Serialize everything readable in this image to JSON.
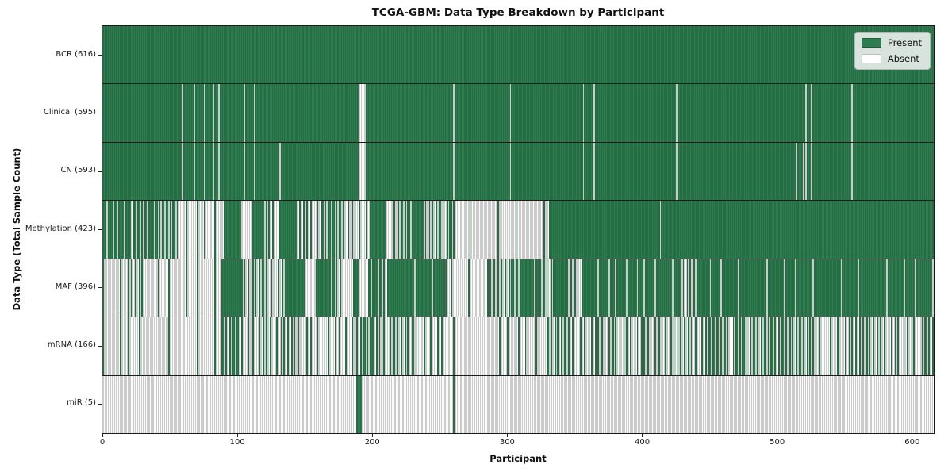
{
  "title": "TCGA-GBM: Data Type Breakdown by Participant",
  "legend": {
    "present_label": "Present",
    "absent_label": "Absent"
  },
  "colors": {
    "present_fill": "#2e7d4f",
    "present_line": "#1e5a39",
    "absent_fill": "#fcfcfc",
    "absent_line": "#9a9a9a",
    "frame": "#1a1a1a"
  },
  "chart_data": {
    "type": "heatmap",
    "title": "TCGA-GBM: Data Type Breakdown by Participant",
    "xlabel": "Participant",
    "ylabel": "Data Type (Total Sample Count)",
    "legend_entries": [
      "Present",
      "Absent"
    ],
    "legend_position": "upper right",
    "n_participants": 616,
    "x_ticks": [
      0,
      100,
      200,
      300,
      400,
      500,
      600
    ],
    "x_range": [
      0,
      616
    ],
    "grid": false,
    "note": "Each row is a presence/absence barcode across 616 participants; segments are [start, end, presence_density] with 1 = present (green), 0 = absent (white), fractional = mixed region (estimated from pixels).",
    "rows": [
      {
        "data_type": "BCR",
        "label": "BCR (616)",
        "present_count": 616,
        "segments": [
          [
            0,
            616,
            1
          ]
        ]
      },
      {
        "data_type": "Clinical",
        "label": "Clinical (595)",
        "present_count": 595,
        "segments": [
          [
            0,
            59,
            1
          ],
          [
            59,
            60,
            0
          ],
          [
            60,
            68,
            1
          ],
          [
            68,
            69,
            0
          ],
          [
            69,
            75,
            1
          ],
          [
            75,
            76,
            0
          ],
          [
            76,
            82,
            1
          ],
          [
            82,
            83,
            0
          ],
          [
            83,
            86,
            1
          ],
          [
            86,
            87,
            0
          ],
          [
            87,
            105,
            1
          ],
          [
            105,
            106,
            0
          ],
          [
            106,
            112,
            1
          ],
          [
            112,
            113,
            0
          ],
          [
            113,
            190,
            1
          ],
          [
            190,
            195,
            0
          ],
          [
            195,
            260,
            1
          ],
          [
            260,
            261,
            0
          ],
          [
            261,
            302,
            1
          ],
          [
            302,
            303,
            0
          ],
          [
            303,
            356,
            1
          ],
          [
            356,
            357,
            0
          ],
          [
            357,
            364,
            1
          ],
          [
            364,
            365,
            0
          ],
          [
            365,
            425,
            1
          ],
          [
            425,
            426,
            0
          ],
          [
            426,
            521,
            1
          ],
          [
            521,
            522,
            0
          ],
          [
            522,
            525,
            1
          ],
          [
            525,
            526,
            0
          ],
          [
            526,
            555,
            1
          ],
          [
            555,
            556,
            0
          ],
          [
            556,
            616,
            1
          ]
        ]
      },
      {
        "data_type": "CN",
        "label": "CN (593)",
        "present_count": 593,
        "segments": [
          [
            0,
            59,
            1
          ],
          [
            59,
            60,
            0
          ],
          [
            60,
            68,
            1
          ],
          [
            68,
            69,
            0
          ],
          [
            69,
            75,
            1
          ],
          [
            75,
            76,
            0
          ],
          [
            76,
            82,
            1
          ],
          [
            82,
            83,
            0
          ],
          [
            83,
            86,
            1
          ],
          [
            86,
            87,
            0
          ],
          [
            87,
            105,
            1
          ],
          [
            105,
            106,
            0
          ],
          [
            106,
            112,
            1
          ],
          [
            112,
            113,
            0
          ],
          [
            113,
            131,
            1
          ],
          [
            131,
            132,
            0
          ],
          [
            132,
            190,
            1
          ],
          [
            190,
            195,
            0
          ],
          [
            195,
            260,
            1
          ],
          [
            260,
            261,
            0
          ],
          [
            261,
            302,
            1
          ],
          [
            302,
            303,
            0
          ],
          [
            303,
            356,
            1
          ],
          [
            356,
            357,
            0
          ],
          [
            357,
            364,
            1
          ],
          [
            364,
            365,
            0
          ],
          [
            365,
            425,
            1
          ],
          [
            425,
            426,
            0
          ],
          [
            426,
            514,
            1
          ],
          [
            514,
            515,
            0
          ],
          [
            515,
            519,
            1
          ],
          [
            519,
            520,
            0
          ],
          [
            520,
            521,
            1
          ],
          [
            521,
            522,
            0
          ],
          [
            522,
            525,
            1
          ],
          [
            525,
            526,
            0
          ],
          [
            526,
            555,
            1
          ],
          [
            555,
            556,
            0
          ],
          [
            556,
            616,
            1
          ]
        ]
      },
      {
        "data_type": "Methylation",
        "label": "Methylation (423)",
        "present_count": 423,
        "segments": [
          [
            0,
            22,
            0.75
          ],
          [
            22,
            57,
            0.65
          ],
          [
            57,
            90,
            0.12
          ],
          [
            90,
            103,
            1
          ],
          [
            103,
            111,
            0
          ],
          [
            111,
            120,
            1
          ],
          [
            120,
            132,
            0.3
          ],
          [
            132,
            143,
            1
          ],
          [
            143,
            163,
            0.35
          ],
          [
            163,
            180,
            0.55
          ],
          [
            180,
            199,
            0.25
          ],
          [
            199,
            210,
            1
          ],
          [
            210,
            216,
            0
          ],
          [
            216,
            230,
            0.5
          ],
          [
            230,
            238,
            1
          ],
          [
            238,
            262,
            0.45
          ],
          [
            262,
            331,
            0.05
          ],
          [
            331,
            413,
            1
          ],
          [
            413,
            414,
            0
          ],
          [
            414,
            616,
            1
          ]
        ]
      },
      {
        "data_type": "MAF",
        "label": "MAF (396)",
        "present_count": 396,
        "segments": [
          [
            0,
            18,
            0.08
          ],
          [
            18,
            30,
            0.35
          ],
          [
            30,
            88,
            0.08
          ],
          [
            88,
            103,
            1
          ],
          [
            103,
            122,
            0.45
          ],
          [
            122,
            135,
            0.25
          ],
          [
            135,
            150,
            1
          ],
          [
            150,
            158,
            0
          ],
          [
            158,
            168,
            1
          ],
          [
            168,
            178,
            0.4
          ],
          [
            178,
            186,
            0
          ],
          [
            186,
            190,
            1
          ],
          [
            190,
            196,
            0
          ],
          [
            196,
            210,
            0.7
          ],
          [
            210,
            255,
            0.92
          ],
          [
            255,
            284,
            0.08
          ],
          [
            284,
            300,
            0.3
          ],
          [
            300,
            309,
            0.6
          ],
          [
            309,
            320,
            1
          ],
          [
            320,
            336,
            0.55
          ],
          [
            336,
            345,
            1
          ],
          [
            345,
            356,
            0.3
          ],
          [
            356,
            425,
            0.88
          ],
          [
            425,
            441,
            0.45
          ],
          [
            441,
            616,
            0.93
          ]
        ]
      },
      {
        "data_type": "mRNA",
        "label": "mRNA (166)",
        "present_count": 166,
        "segments": [
          [
            0,
            18,
            0.06
          ],
          [
            18,
            32,
            0.15
          ],
          [
            32,
            88,
            0.04
          ],
          [
            88,
            100,
            0.5
          ],
          [
            100,
            150,
            0.3
          ],
          [
            150,
            190,
            0.2
          ],
          [
            190,
            200,
            0.6
          ],
          [
            200,
            230,
            0.35
          ],
          [
            230,
            255,
            0.25
          ],
          [
            255,
            300,
            0.05
          ],
          [
            300,
            330,
            0.15
          ],
          [
            330,
            350,
            0.45
          ],
          [
            350,
            420,
            0.3
          ],
          [
            420,
            450,
            0.35
          ],
          [
            450,
            465,
            0.6
          ],
          [
            465,
            525,
            0.5
          ],
          [
            525,
            545,
            0.15
          ],
          [
            545,
            590,
            0.35
          ],
          [
            590,
            605,
            0.1
          ],
          [
            605,
            616,
            0.5
          ]
        ]
      },
      {
        "data_type": "miR",
        "label": "miR (5)",
        "present_count": 5,
        "segments": [
          [
            0,
            188,
            0
          ],
          [
            188,
            192,
            1
          ],
          [
            192,
            260,
            0
          ],
          [
            260,
            261,
            1
          ],
          [
            261,
            616,
            0
          ]
        ]
      }
    ]
  }
}
